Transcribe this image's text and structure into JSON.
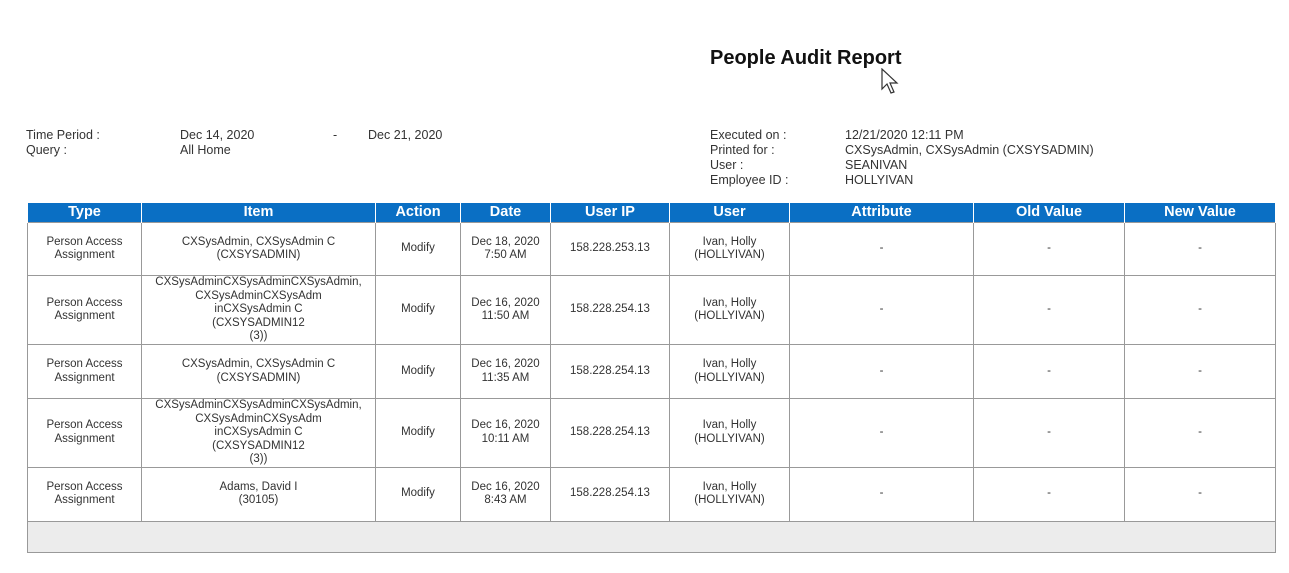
{
  "report": {
    "title": "People Audit Report"
  },
  "filters": {
    "time_period_label": "Time Period :",
    "time_from": "Dec 14, 2020",
    "time_sep": "-",
    "time_to": "Dec 21, 2020",
    "query_label": "Query :",
    "query_value": "All Home"
  },
  "execution": {
    "executed_on_label": "Executed on :",
    "executed_on": "12/21/2020 12:11 PM",
    "printed_for_label": "Printed for :",
    "printed_for": "CXSysAdmin, CXSysAdmin (CXSYSADMIN)",
    "user_label": "User :",
    "user": "SEANIVAN",
    "employee_id_label": "Employee ID :",
    "employee_id": "HOLLYIVAN"
  },
  "table": {
    "headers": [
      "Type",
      "Item",
      "Action",
      "Date",
      "User IP",
      "User",
      "Attribute",
      "Old Value",
      "New Value"
    ],
    "rows": [
      {
        "type": [
          "Person Access",
          "Assignment"
        ],
        "item": [
          "CXSysAdmin, CXSysAdmin C",
          "(CXSYSADMIN)"
        ],
        "action": "Modify",
        "date": [
          "Dec 18, 2020",
          "7:50 AM"
        ],
        "ip": "158.228.253.13",
        "user": [
          "Ivan, Holly",
          "(HOLLYIVAN)"
        ],
        "attribute": "-",
        "old": "-",
        "new": "-"
      },
      {
        "type": [
          "Person Access",
          "Assignment"
        ],
        "item": [
          "CXSysAdminCXSysAdminCXSysAdmin,",
          "CXSysAdminCXSysAdm",
          "inCXSysAdmin C",
          "(CXSYSADMIN12",
          "(3))"
        ],
        "action": "Modify",
        "date": [
          "Dec 16, 2020",
          "11:50 AM"
        ],
        "ip": "158.228.254.13",
        "user": [
          "Ivan, Holly",
          "(HOLLYIVAN)"
        ],
        "attribute": "-",
        "old": "-",
        "new": "-"
      },
      {
        "type": [
          "Person Access",
          "Assignment"
        ],
        "item": [
          "CXSysAdmin, CXSysAdmin C",
          "(CXSYSADMIN)"
        ],
        "action": "Modify",
        "date": [
          "Dec 16, 2020",
          "11:35 AM"
        ],
        "ip": "158.228.254.13",
        "user": [
          "Ivan, Holly",
          "(HOLLYIVAN)"
        ],
        "attribute": "-",
        "old": "-",
        "new": "-"
      },
      {
        "type": [
          "Person Access",
          "Assignment"
        ],
        "item": [
          "CXSysAdminCXSysAdminCXSysAdmin,",
          "CXSysAdminCXSysAdm",
          "inCXSysAdmin C",
          "(CXSYSADMIN12",
          "(3))"
        ],
        "action": "Modify",
        "date": [
          "Dec 16, 2020",
          "10:11 AM"
        ],
        "ip": "158.228.254.13",
        "user": [
          "Ivan, Holly",
          "(HOLLYIVAN)"
        ],
        "attribute": "-",
        "old": "-",
        "new": "-"
      },
      {
        "type": [
          "Person Access",
          "Assignment"
        ],
        "item": [
          "Adams, David I",
          "(30105)"
        ],
        "action": "Modify",
        "date": [
          "Dec 16, 2020",
          "8:43 AM"
        ],
        "ip": "158.228.254.13",
        "user": [
          "Ivan, Holly",
          "(HOLLYIVAN)"
        ],
        "attribute": "-",
        "old": "-",
        "new": "-"
      }
    ]
  },
  "colors": {
    "header_bg": "#0a6fc4",
    "footer_bg": "#ececec"
  },
  "icons": {
    "cursor": "mouse-pointer-icon"
  }
}
